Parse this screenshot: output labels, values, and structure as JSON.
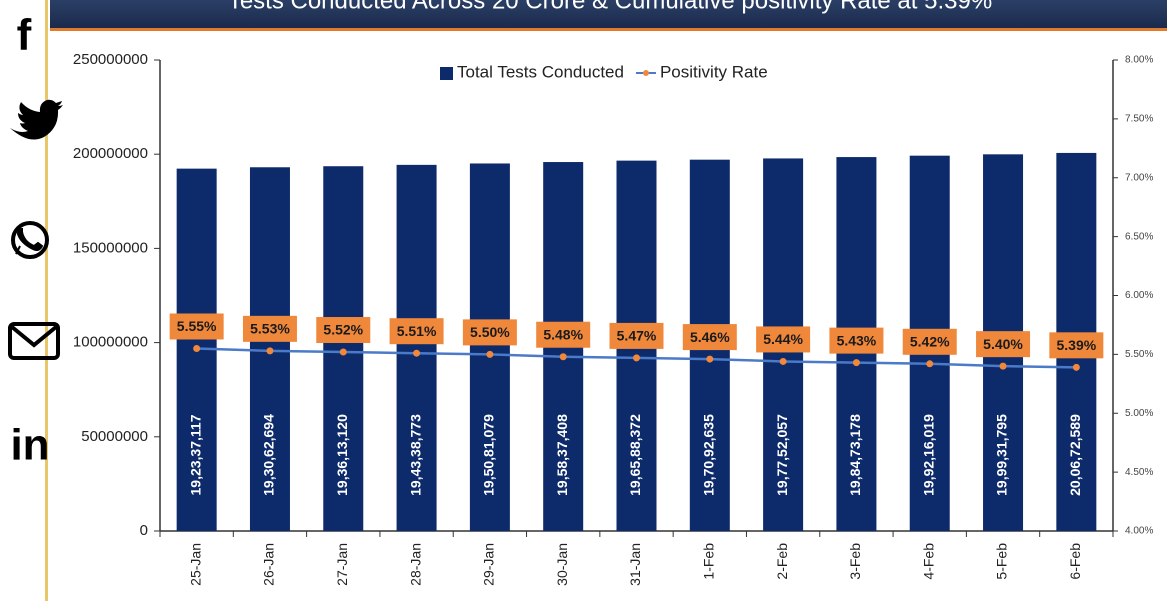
{
  "chart_data": {
    "type": "bar",
    "title": "Tests Conducted Across 20 Crore & Cumulative positivity Rate at 5.39%",
    "categories": [
      "25-Jan",
      "26-Jan",
      "27-Jan",
      "28-Jan",
      "29-Jan",
      "30-Jan",
      "31-Jan",
      "1-Feb",
      "2-Feb",
      "3-Feb",
      "4-Feb",
      "5-Feb",
      "6-Feb"
    ],
    "series": [
      {
        "name": "Total Tests Conducted",
        "type": "bar",
        "color": "#0d2a6b",
        "values": [
          192337117,
          193062694,
          193613120,
          194338773,
          195081079,
          195837408,
          196588372,
          197092635,
          197752057,
          198473178,
          199216019,
          199931795,
          200672589
        ],
        "value_labels": [
          "19,23,37,117",
          "19,30,62,694",
          "19,36,13,120",
          "19,43,38,773",
          "19,50,81,079",
          "19,58,37,408",
          "19,65,88,372",
          "19,70,92,635",
          "19,77,52,057",
          "19,84,73,178",
          "19,92,16,019",
          "19,99,31,795",
          "20,06,72,589"
        ]
      },
      {
        "name": "Positivity Rate",
        "type": "line",
        "axis": "y2",
        "color": "#4a7ac8",
        "marker_color": "#f0883c",
        "values": [
          5.55,
          5.53,
          5.52,
          5.51,
          5.5,
          5.48,
          5.47,
          5.46,
          5.44,
          5.43,
          5.42,
          5.4,
          5.39
        ],
        "value_labels": [
          "5.55%",
          "5.53%",
          "5.52%",
          "5.51%",
          "5.50%",
          "5.48%",
          "5.47%",
          "5.46%",
          "5.44%",
          "5.43%",
          "5.42%",
          "5.40%",
          "5.39%"
        ]
      }
    ],
    "ylim": [
      0,
      250000000
    ],
    "yticks": [
      0,
      50000000,
      100000000,
      150000000,
      200000000,
      250000000
    ],
    "y2lim": [
      4,
      8
    ],
    "y2ticks": [
      {
        "value": 4,
        "label": "4.00%"
      },
      {
        "value": 4.5,
        "label": "4.50%"
      },
      {
        "value": 5,
        "label": "5.00%"
      },
      {
        "value": 5.5,
        "label": "5.50%"
      },
      {
        "value": 6,
        "label": "6.00%"
      },
      {
        "value": 6.5,
        "label": "6.50%"
      },
      {
        "value": 7,
        "label": "7.00%"
      },
      {
        "value": 7.5,
        "label": "7.50%"
      },
      {
        "value": 8,
        "label": "8.00%"
      }
    ],
    "legend": "top"
  },
  "sidebar": {
    "facebook": "f",
    "linkedin": "in"
  }
}
